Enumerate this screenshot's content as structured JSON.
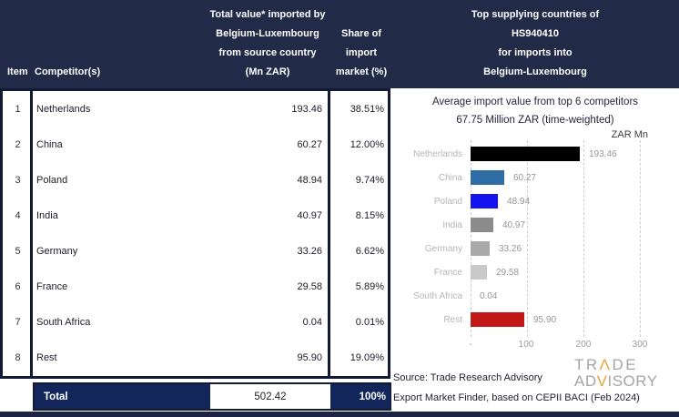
{
  "header": {
    "col_item": "Item",
    "col_competitor": "Competitor(s)",
    "col_value_lines": [
      "Total value* imported by",
      "Belgium-Luxembourg",
      "from source country",
      "(Mn ZAR)"
    ],
    "col_share_lines": [
      "Share of",
      "import",
      "market (%)"
    ],
    "right_title_lines": [
      "Top supplying countries of",
      "HS940410",
      "for imports into",
      "Belgium-Luxembourg"
    ]
  },
  "table": {
    "rows": [
      {
        "item": "1",
        "competitor": "Netherlands",
        "value": "193.46",
        "share": "38.51%"
      },
      {
        "item": "2",
        "competitor": "China",
        "value": "60.27",
        "share": "12.00%"
      },
      {
        "item": "3",
        "competitor": "Poland",
        "value": "48.94",
        "share": "9.74%"
      },
      {
        "item": "4",
        "competitor": "India",
        "value": "40.97",
        "share": "8.15%"
      },
      {
        "item": "5",
        "competitor": "Germany",
        "value": "33.26",
        "share": "6.62%"
      },
      {
        "item": "6",
        "competitor": "France",
        "value": "29.58",
        "share": "5.89%"
      },
      {
        "item": "7",
        "competitor": "South Africa",
        "value": "0.04",
        "share": "0.01%"
      },
      {
        "item": "8",
        "competitor": "Rest",
        "value": "95.90",
        "share": "19.09%"
      }
    ],
    "total": {
      "label": "Total",
      "value": "502.42",
      "share": "100%"
    }
  },
  "chart_data": {
    "type": "bar",
    "orientation": "horizontal",
    "title": "Average import value from top 6 competitors",
    "subtitle": "67.75 Million ZAR (time-weighted)",
    "unit_label": "ZAR Mn",
    "categories": [
      "Netherlands",
      "China",
      "Poland",
      "India",
      "Germany",
      "France",
      "South Africa",
      "Rest"
    ],
    "values": [
      193.46,
      60.27,
      48.94,
      40.97,
      33.26,
      29.58,
      0.04,
      95.9
    ],
    "value_labels": [
      "193.46",
      "60.27",
      "48.94",
      "40.97",
      "33.26",
      "29.58",
      "0.04",
      "95.90"
    ],
    "bar_colors": [
      "#000000",
      "#2f6ea5",
      "#1414f0",
      "#8c8c8c",
      "#a9a9a9",
      "#c9c9c9",
      "#d9d9d9",
      "#c11717"
    ],
    "xlim": [
      0,
      300
    ],
    "x_ticks": [
      "-",
      "100",
      "200",
      "300"
    ],
    "gridlines": "dashed-vertical",
    "legend": "none"
  },
  "footer": {
    "source_line1": "Source: Trade Research Advisory",
    "source_line2": "Export Market Finder, based on CEPII BACI (Feb 2024)"
  },
  "logo": {
    "trade_pre": "TR",
    "trade_accent": "Λ",
    "trade_post": "DE",
    "adv_pre": "AD",
    "adv_accent": "V",
    "adv_post": "ISORY"
  },
  "colors": {
    "header_navy": "#212b47",
    "total_navy": "#12265c",
    "border_navy": "#131b33",
    "accent_orange": "#efa03c",
    "bar_red": "#c11717",
    "bar_blue_bright": "#1414f0",
    "bar_blue_steel": "#2f6ea5"
  }
}
